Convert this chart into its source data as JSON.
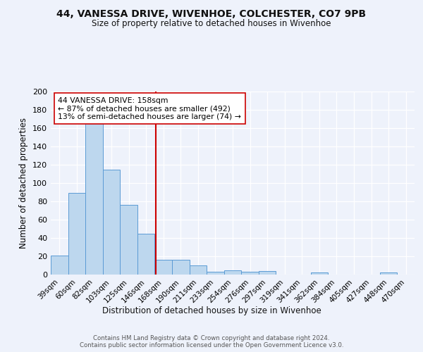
{
  "title1": "44, VANESSA DRIVE, WIVENHOE, COLCHESTER, CO7 9PB",
  "title2": "Size of property relative to detached houses in Wivenhoe",
  "xlabel": "Distribution of detached houses by size in Wivenhoe",
  "ylabel": "Number of detached properties",
  "categories": [
    "39sqm",
    "60sqm",
    "82sqm",
    "103sqm",
    "125sqm",
    "146sqm",
    "168sqm",
    "190sqm",
    "211sqm",
    "233sqm",
    "254sqm",
    "276sqm",
    "297sqm",
    "319sqm",
    "341sqm",
    "362sqm",
    "384sqm",
    "405sqm",
    "427sqm",
    "448sqm",
    "470sqm"
  ],
  "values": [
    21,
    89,
    168,
    115,
    76,
    45,
    16,
    16,
    10,
    3,
    5,
    3,
    4,
    0,
    0,
    2,
    0,
    0,
    0,
    2,
    0
  ],
  "bar_color": "#BDD7EE",
  "bar_edge_color": "#5B9BD5",
  "vline_color": "#CC0000",
  "annotation_line1": "44 VANESSA DRIVE: 158sqm",
  "annotation_line2": "← 87% of detached houses are smaller (492)",
  "annotation_line3": "13% of semi-detached houses are larger (74) →",
  "ylim": [
    0,
    200
  ],
  "yticks": [
    0,
    20,
    40,
    60,
    80,
    100,
    120,
    140,
    160,
    180,
    200
  ],
  "footer_text": "Contains HM Land Registry data © Crown copyright and database right 2024.\nContains public sector information licensed under the Open Government Licence v3.0.",
  "bg_color": "#EEF2FB",
  "grid_color": "#FFFFFF"
}
